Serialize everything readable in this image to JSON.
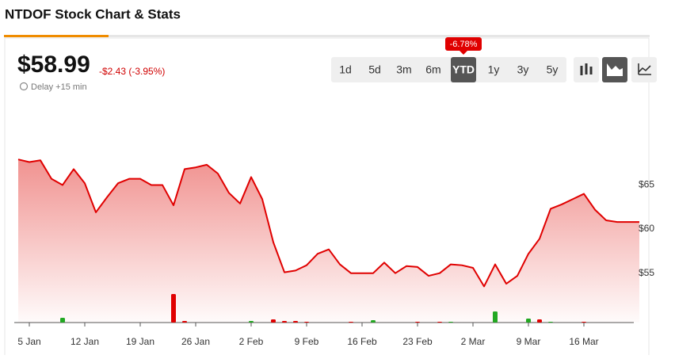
{
  "header": {
    "title": "NTDOF Stock Chart & Stats"
  },
  "quote": {
    "price": "$58.99",
    "change": "-$2.43 (-3.95%)",
    "delay": "Delay +15 min"
  },
  "ranges": {
    "options": [
      "1d",
      "5d",
      "3m",
      "6m",
      "YTD",
      "1y",
      "3y",
      "5y"
    ],
    "selected": 4,
    "selected_change": "-6.78%"
  },
  "chart_data": {
    "type": "area",
    "color": "#e00000",
    "categories": [
      null,
      "5 Jan",
      null,
      null,
      null,
      null,
      "12 Jan",
      null,
      null,
      null,
      null,
      "19 Jan",
      null,
      null,
      null,
      null,
      "26 Jan",
      null,
      null,
      null,
      null,
      "2 Feb",
      null,
      null,
      null,
      null,
      "9 Feb",
      null,
      null,
      null,
      null,
      "16 Feb",
      null,
      null,
      null,
      null,
      "23 Feb",
      null,
      null,
      null,
      null,
      "2 Mar",
      null,
      null,
      null,
      null,
      "9 Mar",
      null,
      null,
      null,
      null,
      "16 Mar",
      null,
      null,
      null,
      null,
      null
    ],
    "values": [
      67.9,
      67.6,
      67.8,
      65.7,
      65.0,
      66.8,
      65.2,
      61.9,
      63.6,
      65.2,
      65.7,
      65.7,
      65.0,
      65.0,
      62.7,
      66.8,
      67.0,
      67.3,
      66.3,
      64.1,
      62.9,
      65.9,
      63.4,
      58.5,
      55.1,
      55.3,
      55.9,
      57.2,
      57.7,
      56.0,
      55.0,
      55.0,
      55.0,
      56.2,
      55.0,
      55.8,
      55.7,
      54.7,
      55.0,
      56.0,
      55.9,
      55.6,
      53.5,
      56.0,
      53.8,
      54.7,
      57.2,
      58.9,
      62.3,
      62.8,
      63.4,
      64.0,
      62.2,
      61.0,
      60.8,
      60.8,
      60.8
    ],
    "volume": [
      {
        "color": "#22a822",
        "values": [
          null,
          null,
          null,
          null,
          6,
          null,
          null,
          null,
          null,
          null,
          null,
          null,
          null,
          null,
          null,
          null,
          null,
          null,
          null,
          null,
          null,
          2,
          null,
          null,
          null,
          null,
          null,
          null,
          null,
          null,
          null,
          null,
          3,
          null,
          null,
          null,
          null,
          null,
          null,
          1,
          null,
          null,
          null,
          14,
          null,
          null,
          5,
          null,
          1,
          null,
          null,
          null,
          null,
          null,
          null,
          null,
          null
        ]
      },
      {
        "color": "#e00000",
        "values": [
          null,
          null,
          null,
          null,
          null,
          null,
          null,
          null,
          null,
          null,
          null,
          null,
          null,
          null,
          36,
          2,
          null,
          null,
          null,
          null,
          null,
          null,
          null,
          4,
          2,
          2,
          1,
          null,
          null,
          null,
          1,
          null,
          null,
          null,
          null,
          null,
          1,
          null,
          1,
          null,
          null,
          null,
          null,
          null,
          null,
          null,
          null,
          4,
          null,
          null,
          null,
          1,
          null,
          null,
          null,
          null,
          null
        ]
      }
    ],
    "ylim": [
      49.4,
      73.4
    ],
    "yticks": [
      {
        "value": 55,
        "label": "$55"
      },
      {
        "value": 60,
        "label": "$60"
      },
      {
        "value": 65,
        "label": "$65"
      }
    ]
  }
}
